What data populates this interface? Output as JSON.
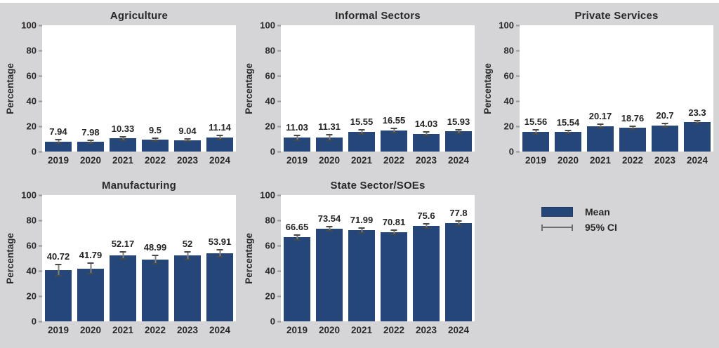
{
  "figure": {
    "bg_color": "#d5d5d7",
    "panel_bg": "#ffffff",
    "bar_color": "#244678",
    "error_line_color": "#83817a",
    "error_cap_color": "#4a4944",
    "text_color": "#2a2728",
    "legend": {
      "mean_label": "Mean",
      "ci_label": "95% CI"
    }
  },
  "chart_data": [
    {
      "type": "bar",
      "title": "Agriculture",
      "ylabel": "Percentage",
      "categories": [
        "2019",
        "2020",
        "2021",
        "2022",
        "2023",
        "2024"
      ],
      "values": [
        7.94,
        7.98,
        10.33,
        9.5,
        9.04,
        11.14
      ],
      "labels": [
        "7.94",
        "7.98",
        "10.33",
        "9.5",
        "9.04",
        "11.14"
      ],
      "ci": [
        1.8,
        1.7,
        1.8,
        1.5,
        1.5,
        2.2
      ],
      "ylim": [
        0,
        100
      ],
      "yticks": [
        0,
        20,
        40,
        60,
        80,
        100
      ],
      "grid": false
    },
    {
      "type": "bar",
      "title": "Informal Sectors",
      "ylabel": "Percentage",
      "categories": [
        "2019",
        "2020",
        "2021",
        "2022",
        "2023",
        "2024"
      ],
      "values": [
        11.03,
        11.31,
        15.55,
        16.55,
        14.03,
        15.93
      ],
      "labels": [
        "11.03",
        "11.31",
        "15.55",
        "16.55",
        "14.03",
        "15.93"
      ],
      "ci": [
        2.5,
        2.8,
        2.2,
        2.2,
        2.0,
        2.0
      ],
      "ylim": [
        0,
        100
      ],
      "yticks": [
        0,
        20,
        40,
        60,
        80,
        100
      ],
      "grid": false
    },
    {
      "type": "bar",
      "title": "Private Services",
      "ylabel": "Percentage",
      "categories": [
        "2019",
        "2020",
        "2021",
        "2022",
        "2023",
        "2024"
      ],
      "values": [
        15.56,
        15.54,
        20.17,
        18.76,
        20.7,
        23.3
      ],
      "labels": [
        "15.56",
        "15.54",
        "20.17",
        "18.76",
        "20.7",
        "23.3"
      ],
      "ci": [
        2.2,
        1.8,
        2.0,
        1.8,
        2.0,
        1.8
      ],
      "ylim": [
        0,
        100
      ],
      "yticks": [
        0,
        20,
        40,
        60,
        80,
        100
      ],
      "grid": false
    },
    {
      "type": "bar",
      "title": "Manufacturing",
      "ylabel": "Percentage",
      "categories": [
        "2019",
        "2020",
        "2021",
        "2022",
        "2023",
        "2024"
      ],
      "values": [
        40.72,
        41.79,
        52.17,
        48.99,
        52,
        53.91
      ],
      "labels": [
        "40.72",
        "41.79",
        "52.17",
        "48.99",
        "52",
        "53.91"
      ],
      "ci": [
        5.0,
        4.8,
        3.5,
        3.8,
        3.6,
        3.5
      ],
      "ylim": [
        0,
        100
      ],
      "yticks": [
        0,
        20,
        40,
        60,
        80,
        100
      ],
      "grid": false
    },
    {
      "type": "bar",
      "title": "State Sector/SOEs",
      "ylabel": "Percentage",
      "categories": [
        "2019",
        "2020",
        "2021",
        "2022",
        "2023",
        "2024"
      ],
      "values": [
        66.65,
        73.54,
        71.99,
        70.81,
        75.6,
        77.8
      ],
      "labels": [
        "66.65",
        "73.54",
        "71.99",
        "70.81",
        "75.6",
        "77.8"
      ],
      "ci": [
        2.5,
        2.2,
        2.5,
        2.2,
        2.3,
        2.2
      ],
      "ylim": [
        0,
        100
      ],
      "yticks": [
        0,
        20,
        40,
        60,
        80,
        100
      ],
      "grid": false
    }
  ]
}
